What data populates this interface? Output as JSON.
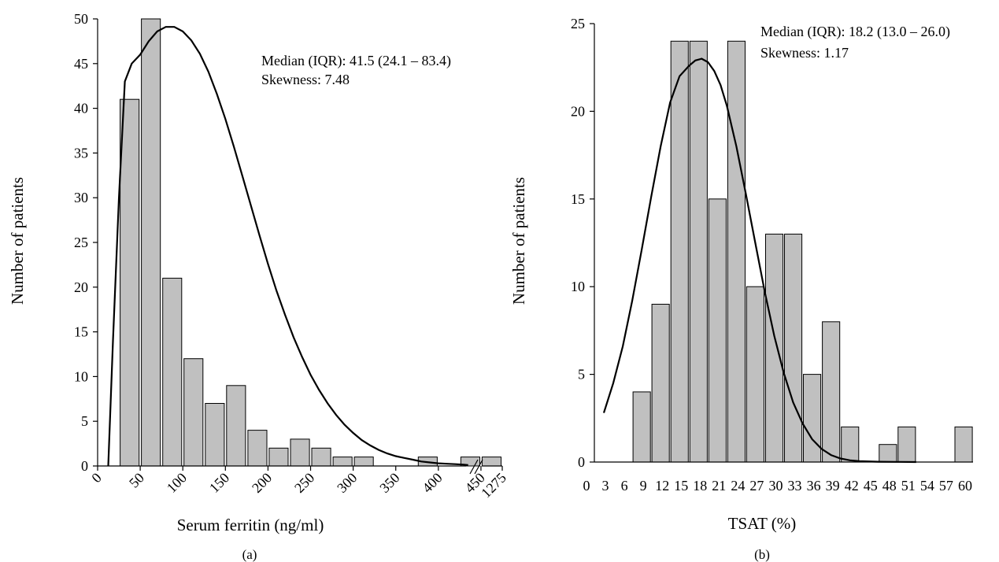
{
  "chart_data": [
    {
      "type": "bar",
      "panel_label": "(a)",
      "xlabel": "Serum ferritin (ng/ml)",
      "ylabel": "Number of patients",
      "ylim": [
        0,
        50
      ],
      "yticks": [
        "0",
        "5",
        "10",
        "15",
        "20",
        "25",
        "30",
        "35",
        "40",
        "45",
        "50"
      ],
      "xtick_labels": [
        "0",
        "50",
        "100",
        "150",
        "200",
        "250",
        "300",
        "350",
        "400",
        "450",
        "1275"
      ],
      "axis_break_between": [
        "450",
        "1275"
      ],
      "categories": [
        "0-25",
        "25-50",
        "50-75",
        "75-100",
        "100-125",
        "125-150",
        "150-175",
        "175-200",
        "200-225",
        "225-250",
        "250-275",
        "275-300",
        "300-325",
        "325-350",
        "350-375",
        "375-400",
        "400-425",
        "425-450",
        "450-1275"
      ],
      "values": [
        0,
        41,
        50,
        21,
        12,
        7,
        9,
        4,
        2,
        3,
        2,
        1,
        1,
        0,
        0,
        1,
        0,
        1,
        1
      ],
      "fit_curve": {
        "x": [
          12.5,
          18,
          25,
          32,
          40,
          50,
          60,
          70,
          80,
          90,
          100,
          110,
          120,
          130,
          140,
          150,
          160,
          170,
          180,
          190,
          200,
          210,
          220,
          230,
          240,
          250,
          260,
          270,
          280,
          290,
          300,
          310,
          320,
          330,
          340,
          350,
          360,
          370,
          380,
          390,
          400,
          410,
          420,
          430,
          435
        ],
        "y": [
          0,
          14,
          30,
          43,
          45,
          46,
          47.5,
          48.6,
          49.1,
          49.1,
          48.6,
          47.6,
          46.1,
          44.1,
          41.6,
          38.8,
          35.7,
          32.4,
          29.1,
          25.8,
          22.6,
          19.6,
          16.9,
          14.4,
          12.2,
          10.2,
          8.5,
          7,
          5.7,
          4.6,
          3.7,
          2.9,
          2.3,
          1.8,
          1.4,
          1.1,
          0.9,
          0.7,
          0.5,
          0.4,
          0.3,
          0.25,
          0.2,
          0.15,
          0.1
        ]
      },
      "annotations": [
        "Median (IQR): 41.5 (24.1 – 83.4)",
        "Skewness: 7.48"
      ]
    },
    {
      "type": "bar",
      "panel_label": "(b)",
      "xlabel": "TSAT (%)",
      "ylabel": "Number of patients",
      "ylim": [
        0,
        25
      ],
      "yticks": [
        "0",
        "5",
        "10",
        "15",
        "20",
        "25"
      ],
      "xtick_labels": [
        "0",
        "3",
        "6",
        "9",
        "12",
        "15",
        "18",
        "21",
        "24",
        "27",
        "30",
        "33",
        "36",
        "39",
        "42",
        "45",
        "48",
        "51",
        "54",
        "57",
        "60"
      ],
      "categories": [
        "0-3",
        "3-6",
        "6-9",
        "9-12",
        "12-15",
        "15-18",
        "18-21",
        "21-24",
        "24-27",
        "27-30",
        "30-33",
        "33-36",
        "36-39",
        "39-42",
        "42-45",
        "45-48",
        "48-51",
        "51-54",
        "54-57",
        "57-60"
      ],
      "values": [
        0,
        0,
        4,
        9,
        24,
        24,
        15,
        24,
        10,
        13,
        13,
        5,
        8,
        2,
        0,
        1,
        2,
        0,
        0,
        2
      ],
      "fit_curve": {
        "x": [
          1.5,
          3,
          4.5,
          6,
          7.5,
          9,
          10.5,
          12,
          13.5,
          15,
          16,
          17,
          18,
          19,
          20,
          21,
          22.5,
          24,
          25.5,
          27,
          28.5,
          30,
          31.5,
          33,
          34.5,
          36,
          37.5,
          39,
          40.5,
          42,
          45,
          48,
          51
        ],
        "y": [
          2.8,
          4.5,
          6.6,
          9.2,
          12.1,
          15.1,
          18,
          20.5,
          22,
          22.6,
          22.9,
          23,
          22.8,
          22.3,
          21.5,
          20.3,
          18,
          15.3,
          12.5,
          9.7,
          7.2,
          5.1,
          3.4,
          2.2,
          1.3,
          0.75,
          0.4,
          0.2,
          0.1,
          0.05,
          0.02,
          0.01,
          0
        ]
      },
      "annotations": [
        "Median (IQR): 18.2 (13.0 – 26.0)",
        "Skewness: 1.17"
      ]
    }
  ]
}
